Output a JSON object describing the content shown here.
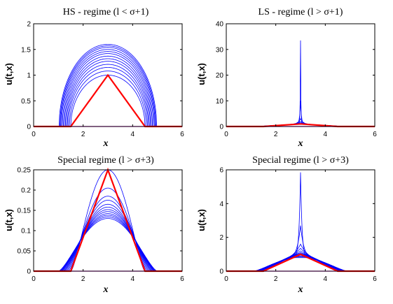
{
  "chart_data": [
    {
      "type": "line",
      "title": "HS - regime (l < σ+1)",
      "xlabel": "x",
      "ylabel": "u(t,x)",
      "xlim": [
        0,
        6
      ],
      "ylim": [
        0,
        2
      ],
      "xticks": [
        "0",
        "2",
        "4",
        "6"
      ],
      "yticks": [
        "0",
        "0.5",
        "1",
        "1.5",
        "2"
      ],
      "grid": false,
      "colors": {
        "evolving": "#0000ff",
        "initial": "#ff0000",
        "baseline": "#ff00ff"
      },
      "support": [
        1.5,
        4.5
      ],
      "initial_peak": 1.0,
      "evolving": {
        "kind": "elliptic",
        "amplitudes": [
          1.0,
          1.08,
          1.15,
          1.21,
          1.27,
          1.32,
          1.37,
          1.42,
          1.46,
          1.5,
          1.54,
          1.57,
          1.6
        ],
        "half_widths": [
          1.5,
          1.55,
          1.6,
          1.64,
          1.68,
          1.72,
          1.76,
          1.8,
          1.84,
          1.88,
          1.91,
          1.94,
          1.97
        ]
      }
    },
    {
      "type": "line",
      "title": "LS - regime (l > σ+1)",
      "xlabel": "x",
      "ylabel": "u(t,x)",
      "xlim": [
        0,
        6
      ],
      "ylim": [
        0,
        40
      ],
      "xticks": [
        "0",
        "2",
        "4",
        "6"
      ],
      "yticks": [
        "0",
        "10",
        "20",
        "30",
        "40"
      ],
      "grid": false,
      "colors": {
        "evolving": "#0000ff",
        "initial": "#ff0000",
        "baseline": "#ff00ff"
      },
      "support": [
        1.5,
        4.5
      ],
      "initial_peak": 1.0,
      "evolving": {
        "kind": "peaked",
        "amplitudes": [
          1.0,
          1.2,
          1.5,
          2.0,
          3.0,
          10.0,
          33.5
        ],
        "half_widths": [
          1.6,
          1.7,
          1.75,
          1.8,
          1.85,
          1.85,
          1.8
        ]
      }
    },
    {
      "type": "line",
      "title": "Special regime (l > σ+3)",
      "xlabel": "x",
      "ylabel": "u(t,x)",
      "xlim": [
        0,
        6
      ],
      "ylim": [
        0,
        0.25
      ],
      "xticks": [
        "0",
        "2",
        "4",
        "6"
      ],
      "yticks": [
        "0",
        "0.05",
        "0.1",
        "0.15",
        "0.2",
        "0.25"
      ],
      "grid": false,
      "colors": {
        "evolving": "#0000ff",
        "initial": "#ff0000",
        "baseline": "#ff00ff"
      },
      "support": [
        1.5,
        4.5
      ],
      "initial_peak": 0.25,
      "evolving": {
        "kind": "bell",
        "amplitudes": [
          0.25,
          0.205,
          0.185,
          0.175,
          0.165,
          0.158,
          0.152,
          0.147,
          0.142,
          0.138,
          0.134,
          0.13
        ],
        "half_widths": [
          1.5,
          1.6,
          1.66,
          1.71,
          1.76,
          1.8,
          1.84,
          1.88,
          1.91,
          1.94,
          1.97,
          2.0
        ]
      }
    },
    {
      "type": "line",
      "title": "Special regime (l > σ+3)",
      "xlabel": "x",
      "ylabel": "u(t,x)",
      "xlim": [
        0,
        6
      ],
      "ylim": [
        0,
        6
      ],
      "xticks": [
        "0",
        "2",
        "4",
        "6"
      ],
      "yticks": [
        "0",
        "2",
        "4",
        "6"
      ],
      "grid": false,
      "colors": {
        "evolving": "#0000ff",
        "initial": "#ff0000",
        "baseline": "#ff00ff"
      },
      "support": [
        1.5,
        4.5
      ],
      "initial_peak": 1.0,
      "evolving": {
        "kind": "peaked",
        "amplitudes": [
          0.8,
          0.85,
          0.9,
          0.95,
          1.0,
          1.05,
          1.1,
          1.2,
          1.35,
          1.6,
          2.7,
          5.85
        ],
        "half_widths": [
          1.6,
          1.65,
          1.7,
          1.75,
          1.8,
          1.85,
          1.9,
          1.9,
          1.9,
          1.88,
          1.85,
          1.8
        ]
      }
    }
  ]
}
